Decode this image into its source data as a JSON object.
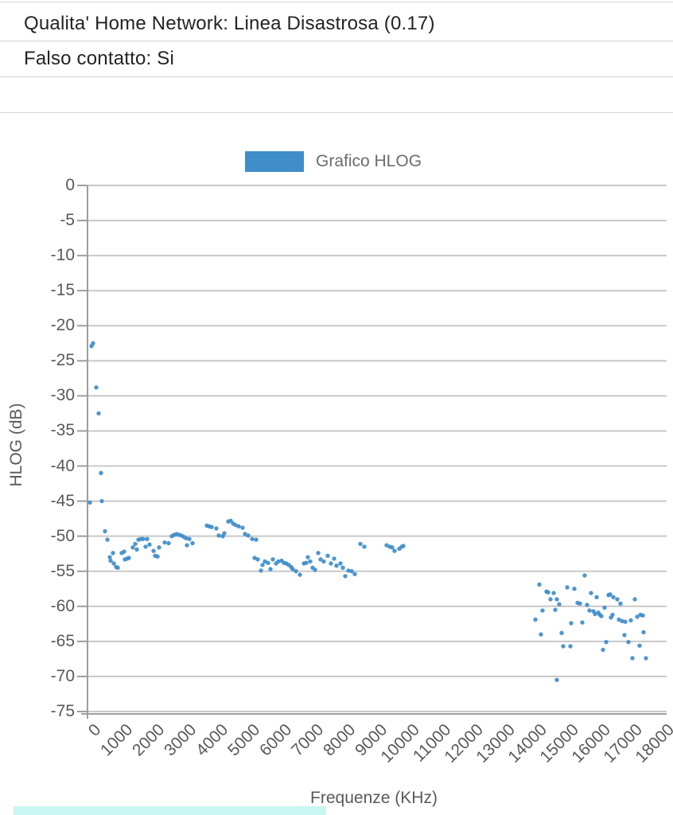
{
  "header": {
    "line1": "Qualita' Home Network: Linea Disastrosa (0.17)",
    "line2": "Falso contatto: Si"
  },
  "legend": {
    "label": "Grafico HLOG",
    "swatch_color": "#3f8dc9"
  },
  "footer": {
    "selection_bar_color": "#c9f6f0"
  },
  "chart_data": {
    "type": "scatter",
    "title": "Grafico HLOG",
    "xlabel": "Frequenze (KHz)",
    "ylabel": "HLOG (dB)",
    "xlim": [
      0,
      18000
    ],
    "ylim": [
      -75,
      0
    ],
    "grid": true,
    "legend_position": "top",
    "series_color": "#3f8dc9",
    "grid_color": "#c8c8c8",
    "axis_color": "#9e9e9e",
    "tick_text_color": "#58595b",
    "x_ticks": [
      0,
      1000,
      2000,
      3000,
      4000,
      5000,
      6000,
      7000,
      8000,
      9000,
      10000,
      11000,
      12000,
      13000,
      14000,
      15000,
      16000,
      17000,
      18000
    ],
    "y_ticks": [
      0,
      -5,
      -10,
      -15,
      -20,
      -25,
      -30,
      -35,
      -40,
      -45,
      -50,
      -55,
      -60,
      -65,
      -70,
      -75
    ],
    "points": [
      [
        75,
        -45.2
      ],
      [
        125,
        -22.9
      ],
      [
        175,
        -22.5
      ],
      [
        275,
        -28.8
      ],
      [
        350,
        -32.5
      ],
      [
        425,
        -41
      ],
      [
        450,
        -45
      ],
      [
        550,
        -49.3
      ],
      [
        625,
        -50.5
      ],
      [
        700,
        -53
      ],
      [
        725,
        -53.5
      ],
      [
        800,
        -52.4
      ],
      [
        825,
        -53.9
      ],
      [
        900,
        -54.4
      ],
      [
        950,
        -54.5
      ],
      [
        1075,
        -52.4
      ],
      [
        1150,
        -52.2
      ],
      [
        1175,
        -53.3
      ],
      [
        1250,
        -53.2
      ],
      [
        1300,
        -53.1
      ],
      [
        1425,
        -51.6
      ],
      [
        1500,
        -51.1
      ],
      [
        1550,
        -51.9
      ],
      [
        1600,
        -50.5
      ],
      [
        1675,
        -50.4
      ],
      [
        1750,
        -50.4
      ],
      [
        1825,
        -51.5
      ],
      [
        1875,
        -50.4
      ],
      [
        1950,
        -51.2
      ],
      [
        2075,
        -52.1
      ],
      [
        2125,
        -52.8
      ],
      [
        2200,
        -52.9
      ],
      [
        2250,
        -51.6
      ],
      [
        2425,
        -50.9
      ],
      [
        2550,
        -51
      ],
      [
        2650,
        -50
      ],
      [
        2725,
        -49.8
      ],
      [
        2800,
        -49.7
      ],
      [
        2875,
        -49.8
      ],
      [
        2950,
        -49.9
      ],
      [
        3025,
        -50.1
      ],
      [
        3100,
        -50.3
      ],
      [
        3125,
        -51.3
      ],
      [
        3200,
        -50.4
      ],
      [
        3300,
        -51
      ],
      [
        3750,
        -48.5
      ],
      [
        3825,
        -48.6
      ],
      [
        3900,
        -48.7
      ],
      [
        4050,
        -48.9
      ],
      [
        4125,
        -49.9
      ],
      [
        4250,
        -50
      ],
      [
        4300,
        -49.6
      ],
      [
        4425,
        -47.9
      ],
      [
        4500,
        -47.8
      ],
      [
        4575,
        -48.2
      ],
      [
        4650,
        -48.4
      ],
      [
        4750,
        -48.6
      ],
      [
        4875,
        -48.8
      ],
      [
        4950,
        -49.7
      ],
      [
        5050,
        -49.9
      ],
      [
        5175,
        -50.4
      ],
      [
        5300,
        -50.5
      ],
      [
        5250,
        -53.1
      ],
      [
        5350,
        -53.3
      ],
      [
        5450,
        -54.9
      ],
      [
        5500,
        -54.1
      ],
      [
        5575,
        -53.6
      ],
      [
        5675,
        -53.8
      ],
      [
        5750,
        -54.7
      ],
      [
        5825,
        -53.3
      ],
      [
        5925,
        -53.9
      ],
      [
        6000,
        -53.6
      ],
      [
        6100,
        -53.5
      ],
      [
        6175,
        -53.8
      ],
      [
        6250,
        -53.9
      ],
      [
        6325,
        -54.1
      ],
      [
        6400,
        -54.4
      ],
      [
        6450,
        -54.7
      ],
      [
        6550,
        -55
      ],
      [
        6675,
        -55.5
      ],
      [
        6800,
        -53.9
      ],
      [
        6875,
        -53.8
      ],
      [
        6925,
        -53
      ],
      [
        7000,
        -53.6
      ],
      [
        7075,
        -54.5
      ],
      [
        7150,
        -54.8
      ],
      [
        7250,
        -52.4
      ],
      [
        7325,
        -53.3
      ],
      [
        7425,
        -53.6
      ],
      [
        7550,
        -52.8
      ],
      [
        7650,
        -53.9
      ],
      [
        7750,
        -53.2
      ],
      [
        7825,
        -54.2
      ],
      [
        7950,
        -53.9
      ],
      [
        8025,
        -54.5
      ],
      [
        8100,
        -55.7
      ],
      [
        8200,
        -54.9
      ],
      [
        8300,
        -55
      ],
      [
        8400,
        -55.4
      ],
      [
        8575,
        -51.1
      ],
      [
        8700,
        -51.5
      ],
      [
        9400,
        -51.3
      ],
      [
        9500,
        -51.5
      ],
      [
        9575,
        -51.6
      ],
      [
        9650,
        -52.1
      ],
      [
        9800,
        -51.8
      ],
      [
        9875,
        -51.5
      ],
      [
        9925,
        -51.4
      ],
      [
        14075,
        -61.9
      ],
      [
        14200,
        -56.9
      ],
      [
        14250,
        -64
      ],
      [
        14300,
        -60.6
      ],
      [
        14425,
        -57.9
      ],
      [
        14475,
        -58
      ],
      [
        14550,
        -59
      ],
      [
        14650,
        -58.1
      ],
      [
        14700,
        -60.5
      ],
      [
        14750,
        -59
      ],
      [
        14750,
        -70.5
      ],
      [
        14825,
        -59.7
      ],
      [
        14900,
        -63.8
      ],
      [
        14950,
        -65.7
      ],
      [
        15075,
        -57.3
      ],
      [
        15175,
        -65.7
      ],
      [
        15200,
        -62.4
      ],
      [
        15300,
        -57.5
      ],
      [
        15400,
        -59.5
      ],
      [
        15475,
        -59.6
      ],
      [
        15550,
        -62.3
      ],
      [
        15625,
        -55.6
      ],
      [
        15700,
        -59.8
      ],
      [
        15775,
        -60.6
      ],
      [
        15825,
        -58.1
      ],
      [
        15900,
        -60.7
      ],
      [
        15950,
        -61.1
      ],
      [
        16000,
        -58.7
      ],
      [
        16050,
        -60.9
      ],
      [
        16100,
        -61.2
      ],
      [
        16150,
        -61.4
      ],
      [
        16200,
        -66.2
      ],
      [
        16250,
        -60.2
      ],
      [
        16300,
        -65.1
      ],
      [
        16375,
        -58.4
      ],
      [
        16425,
        -58.3
      ],
      [
        16450,
        -61.6
      ],
      [
        16500,
        -61.2
      ],
      [
        16525,
        -58.7
      ],
      [
        16650,
        -59
      ],
      [
        16700,
        -61.9
      ],
      [
        16750,
        -59.6
      ],
      [
        16800,
        -62.1
      ],
      [
        16875,
        -64.1
      ],
      [
        16900,
        -62.2
      ],
      [
        17000,
        -65.1
      ],
      [
        17075,
        -62
      ],
      [
        17125,
        -67.4
      ],
      [
        17200,
        -59
      ],
      [
        17275,
        -61.5
      ],
      [
        17350,
        -65.6
      ],
      [
        17375,
        -61.2
      ],
      [
        17450,
        -61.3
      ],
      [
        17475,
        -63.7
      ],
      [
        17550,
        -67.4
      ]
    ]
  }
}
